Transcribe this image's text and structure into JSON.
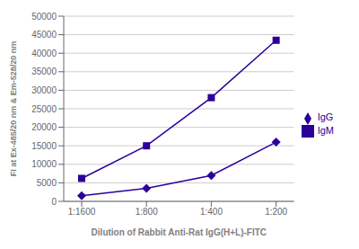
{
  "chart_data": {
    "type": "line",
    "xlabel": "Dilution of Rabbit Anti-Rat IgG(H+L)-FITC",
    "ylabel": "FI at Ex-485/20 nm & Em-528/20 nm",
    "categories": [
      "1:1600",
      "1:800",
      "1:400",
      "1:200"
    ],
    "series": [
      {
        "name": "IgM",
        "color": "#2B0099",
        "marker": "square",
        "values": [
          6200,
          15000,
          28000,
          43500
        ]
      },
      {
        "name": "IgG",
        "color": "#2B0099",
        "marker": "diamond",
        "values": [
          1500,
          3500,
          7000,
          16000
        ]
      }
    ],
    "ylim": [
      0,
      50000
    ],
    "yticks": [
      0,
      5000,
      10000,
      15000,
      20000,
      25000,
      30000,
      35000,
      40000,
      45000,
      50000
    ],
    "grid": true,
    "legend": "right"
  }
}
